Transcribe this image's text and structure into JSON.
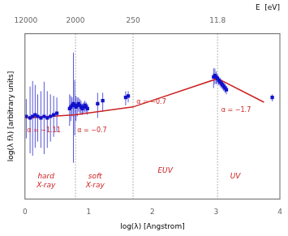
{
  "chart_data": {
    "type": "scatter",
    "xlabel": "log(λ) [Angstrom]",
    "ylabel": "log(λ fλ) [arbitrary units]",
    "x2label": "E  [eV]",
    "xlim": [
      0,
      4
    ],
    "xticks": [
      0,
      1,
      2,
      3,
      4
    ],
    "x2lim": [
      0,
      4
    ],
    "x2ticks": [
      {
        "value": 0.013,
        "label": "12000"
      },
      {
        "value": 0.792,
        "label": "2000"
      },
      {
        "value": 1.696,
        "label": "250"
      },
      {
        "value": 3.022,
        "label": "11.8"
      }
    ],
    "ylim": [
      -0.65,
      1.45
    ],
    "yticks": [],
    "tick_labels": "x",
    "grid": false,
    "vlines": [
      0.792,
      1.696,
      3.022
    ],
    "series": [
      {
        "type": "line",
        "color": "#cc2222",
        "x": [
          0.013,
          0.792,
          1.696,
          3.022,
          3.75
        ],
        "values": [
          0.38,
          0.42,
          0.52,
          0.88,
          0.58
        ]
      },
      {
        "type": "scatter",
        "marker": "square",
        "color": "#1111cc",
        "x": [
          0.02,
          0.08,
          0.12,
          0.16,
          0.2,
          0.25,
          0.3,
          0.35,
          0.4,
          0.45,
          0.5,
          0.7,
          0.72,
          0.74,
          0.76,
          0.78,
          0.8,
          0.82,
          0.84,
          0.86,
          0.88,
          0.9,
          0.92,
          0.94,
          0.96,
          0.98,
          1.14,
          1.22,
          1.58,
          1.62,
          2.96,
          2.98,
          3.0,
          3.02,
          3.04,
          3.06,
          3.08,
          3.1,
          3.12,
          3.14,
          3.16,
          3.88
        ],
        "values": [
          0.4,
          0.38,
          0.4,
          0.42,
          0.4,
          0.38,
          0.4,
          0.38,
          0.4,
          0.42,
          0.44,
          0.5,
          0.52,
          0.54,
          0.56,
          0.54,
          0.52,
          0.54,
          0.56,
          0.54,
          0.52,
          0.5,
          0.52,
          0.54,
          0.52,
          0.5,
          0.56,
          0.6,
          0.64,
          0.66,
          0.9,
          0.92,
          0.9,
          0.88,
          0.86,
          0.84,
          0.82,
          0.8,
          0.78,
          0.76,
          0.74,
          0.64
        ],
        "error_low": [
          0.28,
          0.45,
          0.5,
          0.42,
          0.32,
          0.38,
          0.48,
          0.38,
          0.32,
          0.28,
          0.24,
          0.22,
          0.18,
          0.14,
          0.75,
          0.38,
          0.18,
          0.14,
          0.1,
          0.1,
          0.1,
          0.08,
          0.08,
          0.08,
          0.08,
          0.08,
          0.18,
          0.14,
          0.1,
          0.08,
          0.14,
          0.11,
          0.09,
          0.07,
          0.06,
          0.06,
          0.06,
          0.06,
          0.06,
          0.06,
          0.06,
          0.05
        ],
        "error_high": [
          0.22,
          0.4,
          0.45,
          0.38,
          0.28,
          0.34,
          0.44,
          0.34,
          0.28,
          0.24,
          0.2,
          0.18,
          0.14,
          0.1,
          0.65,
          0.32,
          0.14,
          0.1,
          0.08,
          0.08,
          0.08,
          0.06,
          0.06,
          0.06,
          0.06,
          0.06,
          0.14,
          0.1,
          0.08,
          0.06,
          0.11,
          0.09,
          0.07,
          0.06,
          0.05,
          0.05,
          0.05,
          0.05,
          0.05,
          0.05,
          0.05,
          0.04
        ]
      }
    ],
    "region_labels": [
      {
        "text": "hard\nX-ray",
        "x": 0.33,
        "y": -0.32,
        "color": "#cc2222"
      },
      {
        "text": "soft\nX-ray",
        "x": 1.1,
        "y": -0.32,
        "color": "#cc2222"
      },
      {
        "text": "EUV",
        "x": 2.2,
        "y": -0.25,
        "color": "#cc2222"
      },
      {
        "text": "UV",
        "x": 3.3,
        "y": -0.32,
        "color": "#cc2222"
      }
    ],
    "alpha_labels": [
      {
        "text": "α = −1.11",
        "x": 0.03,
        "y": 0.265,
        "color": "#cc2222"
      },
      {
        "text": "α = −0.7",
        "x": 0.82,
        "y": 0.265,
        "color": "#cc2222"
      },
      {
        "text": "α = −0.7",
        "x": 1.75,
        "y": 0.62,
        "color": "#cc2222"
      },
      {
        "text": "α = −1.7",
        "x": 3.08,
        "y": 0.52,
        "color": "#cc2222"
      }
    ],
    "legend": false
  }
}
